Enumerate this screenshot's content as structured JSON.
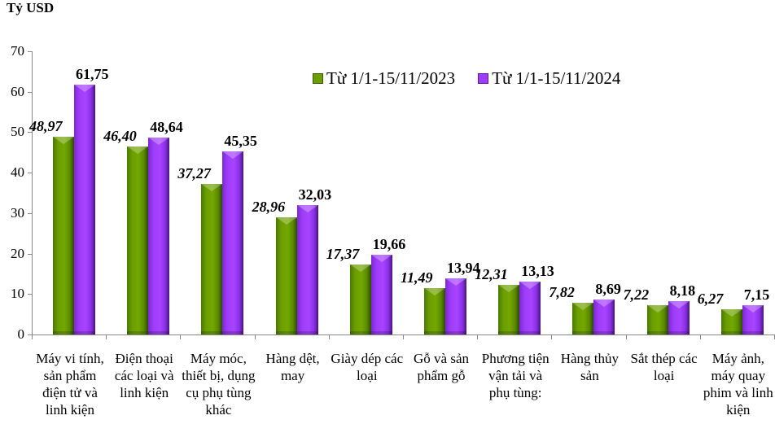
{
  "chart_data": {
    "type": "bar",
    "title": "",
    "unit_label": "Tỷ USD",
    "ylabel": "Tỷ USD",
    "xlabel": "",
    "ylim": [
      0,
      70
    ],
    "yticks": [
      "0",
      "10",
      "20",
      "30",
      "40",
      "50",
      "60",
      "70"
    ],
    "grid": false,
    "legend_position": "top-right",
    "categories": [
      "Máy vi tính, sản phẩm điện tử và linh kiện",
      "Điện thoại các loại và linh kiện",
      "Máy móc, thiết bị, dụng cụ phụ tùng khác",
      "Hàng dệt, may",
      "Giày dép các loại",
      "Gỗ và sản phẩm gỗ",
      "Phương tiện vận tải và phụ tùng:",
      "Hàng thủy sản",
      "Sắt thép các loại",
      "Máy ảnh, máy quay phim và linh kiện"
    ],
    "series": [
      {
        "name": "Từ 1/1-15/11/2023",
        "color": "#6c9e00",
        "values": [
          48.97,
          46.4,
          37.27,
          28.96,
          17.37,
          11.49,
          12.31,
          7.82,
          7.22,
          6.27
        ],
        "labels": [
          "48,97",
          "46,40",
          "37,27",
          "28,96",
          "17,37",
          "11,49",
          "12,31",
          "7,82",
          "7,22",
          "6,27"
        ]
      },
      {
        "name": "Từ 1/1-15/11/2024",
        "color": "#9e3cf8",
        "values": [
          61.75,
          48.64,
          45.35,
          32.03,
          19.66,
          13.94,
          13.13,
          8.69,
          8.18,
          7.15
        ],
        "labels": [
          "61,75",
          "48,64",
          "45,35",
          "32,03",
          "19,66",
          "13,94",
          "13,13",
          "8,69",
          "8,18",
          "7,15"
        ]
      }
    ]
  },
  "legend": {
    "s0": "Từ 1/1-15/11/2023",
    "s1": "Từ 1/1-15/11/2024"
  }
}
